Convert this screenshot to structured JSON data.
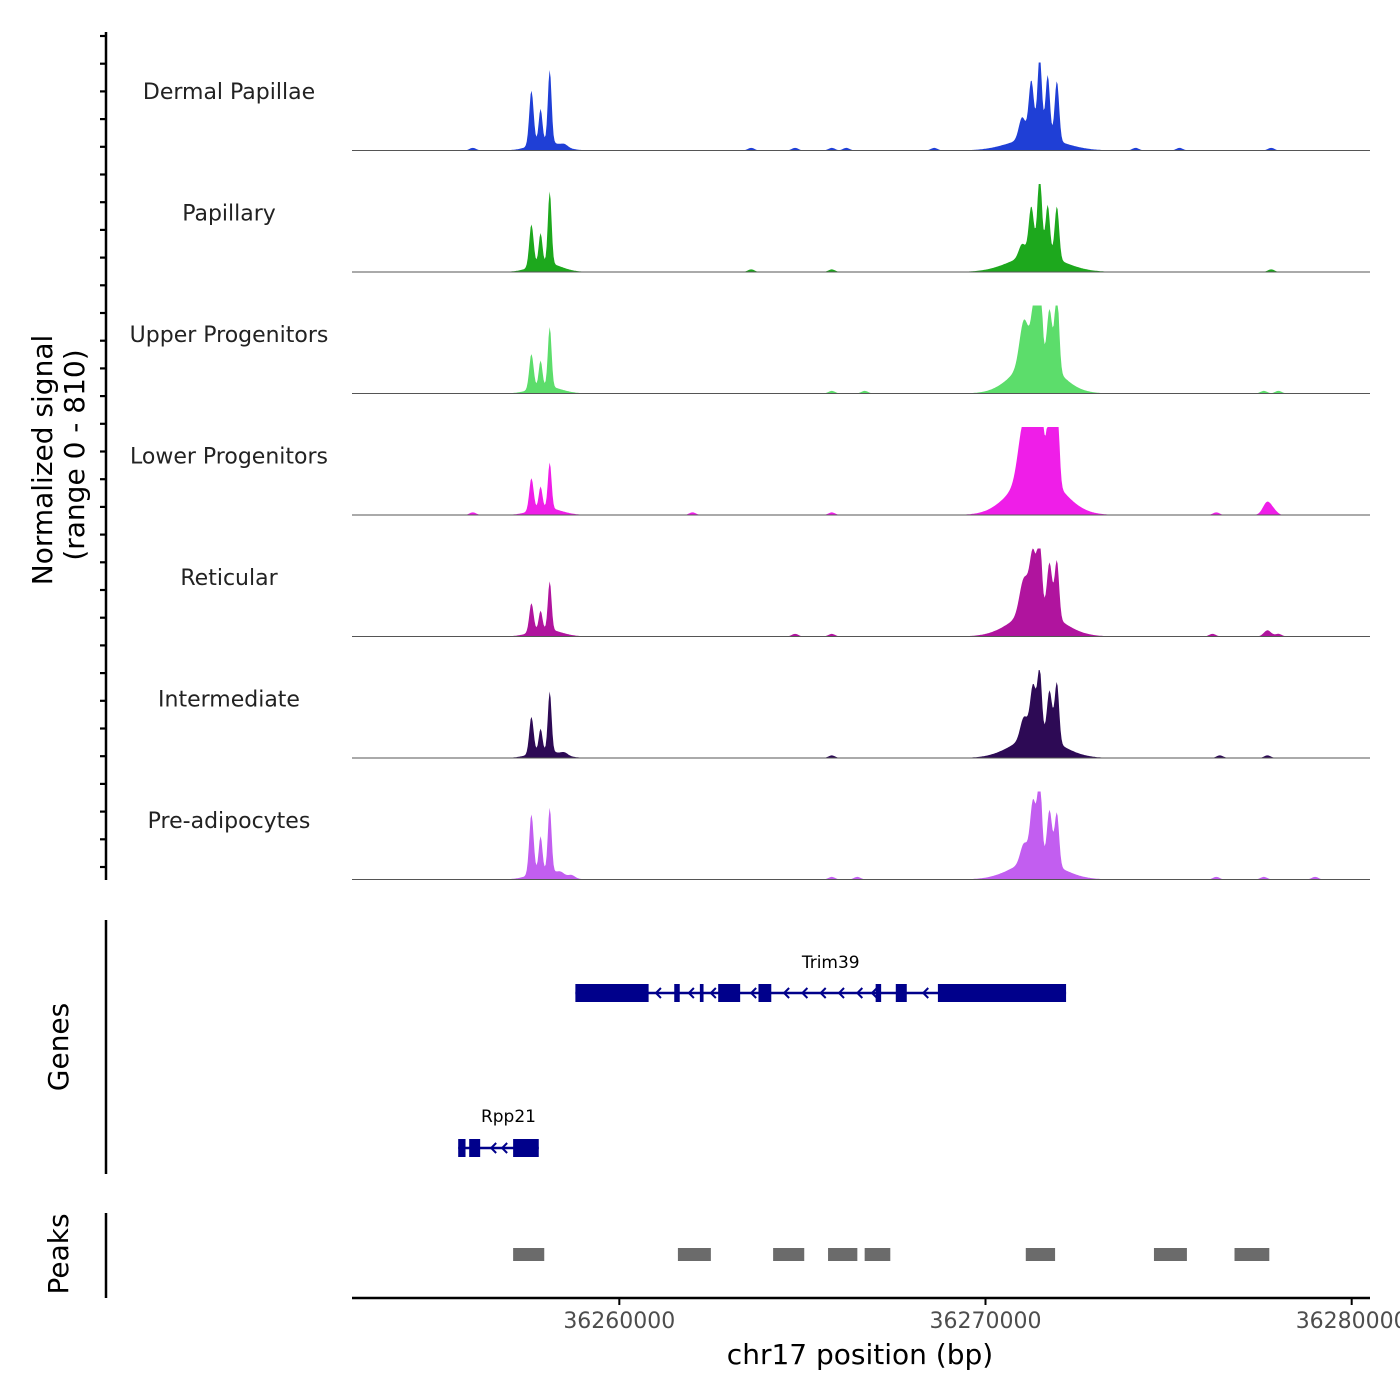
{
  "chart_data": {
    "type": "area",
    "title": "",
    "ylabel_line1": "Normalized signal",
    "ylabel_line2": "(range 0 - 810)",
    "ylim": [
      0,
      810
    ],
    "xlabel": "chr17 position (bp)",
    "xlim": [
      36252700,
      36280500
    ],
    "xticks": [
      36260000,
      36270000,
      36280000
    ],
    "xtick_labels": [
      "36260000",
      "36270000",
      "36280000"
    ],
    "tracks": [
      {
        "name": "Dermal Papillae",
        "color": "#1f3fd6",
        "peaks": [
          [
            36257600,
            0.62,
            60
          ],
          [
            36257850,
            0.38,
            50
          ],
          [
            36258100,
            0.82,
            50
          ],
          [
            36258000,
            0.1,
            400
          ],
          [
            36271000,
            0.25,
            90
          ],
          [
            36271250,
            0.65,
            70
          ],
          [
            36271480,
            0.95,
            60
          ],
          [
            36271700,
            0.72,
            60
          ],
          [
            36271950,
            0.68,
            60
          ],
          [
            36271400,
            0.15,
            700
          ]
        ],
        "small": [
          36256000,
          36258500,
          36263600,
          36264800,
          36265800,
          36266200,
          36268600,
          36274100,
          36275300,
          36277800
        ]
      },
      {
        "name": "Papillary",
        "color": "#1da81d",
        "peaks": [
          [
            36257600,
            0.48,
            60
          ],
          [
            36257850,
            0.35,
            50
          ],
          [
            36258100,
            0.82,
            50
          ],
          [
            36258000,
            0.1,
            400
          ],
          [
            36271000,
            0.15,
            90
          ],
          [
            36271250,
            0.55,
            70
          ],
          [
            36271480,
            0.95,
            60
          ],
          [
            36271700,
            0.58,
            60
          ],
          [
            36271950,
            0.6,
            60
          ],
          [
            36271400,
            0.2,
            700
          ]
        ],
        "small": [
          36265800,
          36277800,
          36263600
        ]
      },
      {
        "name": "Upper Progenitors",
        "color": "#5cdd6b",
        "peaks": [
          [
            36257600,
            0.4,
            60
          ],
          [
            36257850,
            0.3,
            50
          ],
          [
            36258100,
            0.68,
            50
          ],
          [
            36258000,
            0.08,
            400
          ],
          [
            36271050,
            0.5,
            120
          ],
          [
            36271350,
            0.7,
            90
          ],
          [
            36271480,
            1.0,
            60
          ],
          [
            36271750,
            0.62,
            70
          ],
          [
            36271950,
            0.9,
            60
          ],
          [
            36271400,
            0.4,
            600
          ]
        ],
        "small": [
          36265800,
          36266700,
          36277600,
          36278000
        ]
      },
      {
        "name": "Lower Progenitors",
        "color": "#ef1ee8",
        "peaks": [
          [
            36257600,
            0.37,
            60
          ],
          [
            36257850,
            0.25,
            50
          ],
          [
            36258100,
            0.52,
            50
          ],
          [
            36258000,
            0.08,
            400
          ],
          [
            36271050,
            0.65,
            150
          ],
          [
            36271350,
            0.85,
            90
          ],
          [
            36271500,
            0.92,
            70
          ],
          [
            36271750,
            0.78,
            80
          ],
          [
            36271950,
            1.0,
            60
          ],
          [
            36271400,
            0.5,
            650
          ],
          [
            36277700,
            0.15,
            120
          ]
        ],
        "small": [
          36265800,
          36276300,
          36277900,
          36256000,
          36262000
        ]
      },
      {
        "name": "Reticular",
        "color": "#b0149e",
        "peaks": [
          [
            36257600,
            0.33,
            60
          ],
          [
            36257850,
            0.22,
            50
          ],
          [
            36258100,
            0.55,
            50
          ],
          [
            36258000,
            0.08,
            400
          ],
          [
            36271050,
            0.4,
            120
          ],
          [
            36271300,
            0.65,
            90
          ],
          [
            36271480,
            0.8,
            60
          ],
          [
            36271750,
            0.58,
            70
          ],
          [
            36271950,
            0.65,
            60
          ],
          [
            36271400,
            0.3,
            650
          ],
          [
            36277700,
            0.07,
            100
          ]
        ],
        "small": [
          36264800,
          36265800,
          36276200,
          36278000
        ]
      },
      {
        "name": "Intermediate",
        "color": "#2d0a55",
        "peaks": [
          [
            36257600,
            0.42,
            60
          ],
          [
            36257850,
            0.26,
            50
          ],
          [
            36258100,
            0.68,
            50
          ],
          [
            36258000,
            0.08,
            400
          ],
          [
            36271050,
            0.25,
            100
          ],
          [
            36271300,
            0.58,
            80
          ],
          [
            36271480,
            0.75,
            60
          ],
          [
            36271750,
            0.55,
            70
          ],
          [
            36271950,
            0.68,
            60
          ],
          [
            36271400,
            0.25,
            650
          ]
        ],
        "small": [
          36258500,
          36265800,
          36276400,
          36277700
        ]
      },
      {
        "name": "Pre-adipocytes",
        "color": "#c25ef0",
        "peaks": [
          [
            36257600,
            0.68,
            60
          ],
          [
            36257850,
            0.4,
            50
          ],
          [
            36258100,
            0.72,
            50
          ],
          [
            36258000,
            0.1,
            400
          ],
          [
            36271050,
            0.22,
            100
          ],
          [
            36271300,
            0.68,
            80
          ],
          [
            36271480,
            0.95,
            60
          ],
          [
            36271750,
            0.6,
            70
          ],
          [
            36271950,
            0.6,
            60
          ],
          [
            36271400,
            0.22,
            650
          ]
        ],
        "small": [
          36258400,
          36258700,
          36265800,
          36266500,
          36276300,
          36277600,
          36279000
        ]
      }
    ],
    "genes_label": "Genes",
    "gene_color": "#00008b",
    "genes": [
      {
        "name": "Trim39",
        "strand": "-",
        "start": 36258800,
        "end": 36272200,
        "exons": [
          [
            36258800,
            36260800
          ],
          [
            36261500,
            36261650
          ],
          [
            36262200,
            36262300
          ],
          [
            36262700,
            36263300
          ],
          [
            36263800,
            36264150
          ],
          [
            36267000,
            36267150
          ],
          [
            36267550,
            36267850
          ],
          [
            36268700,
            36272200
          ]
        ],
        "arrows": [
          36261000,
          36261900,
          36262500,
          36263600,
          36264500,
          36265000,
          36265500,
          36266000,
          36266500,
          36266900,
          36268300
        ]
      },
      {
        "name": "Rpp21",
        "strand": "-",
        "start": 36255600,
        "end": 36257800,
        "exons": [
          [
            36255600,
            36255800
          ],
          [
            36255900,
            36256200
          ],
          [
            36257100,
            36257800
          ]
        ],
        "arrows": [
          36256500,
          36256800
        ]
      }
    ],
    "peaks_label": "Peaks",
    "peaks_color": "#6b6b6b",
    "peak_regions": [
      [
        36257100,
        36257950
      ],
      [
        36261600,
        36262500
      ],
      [
        36264200,
        36265050
      ],
      [
        36265700,
        36266500
      ],
      [
        36266700,
        36267400
      ],
      [
        36271100,
        36271900
      ],
      [
        36274600,
        36275500
      ],
      [
        36276800,
        36277750
      ]
    ]
  }
}
